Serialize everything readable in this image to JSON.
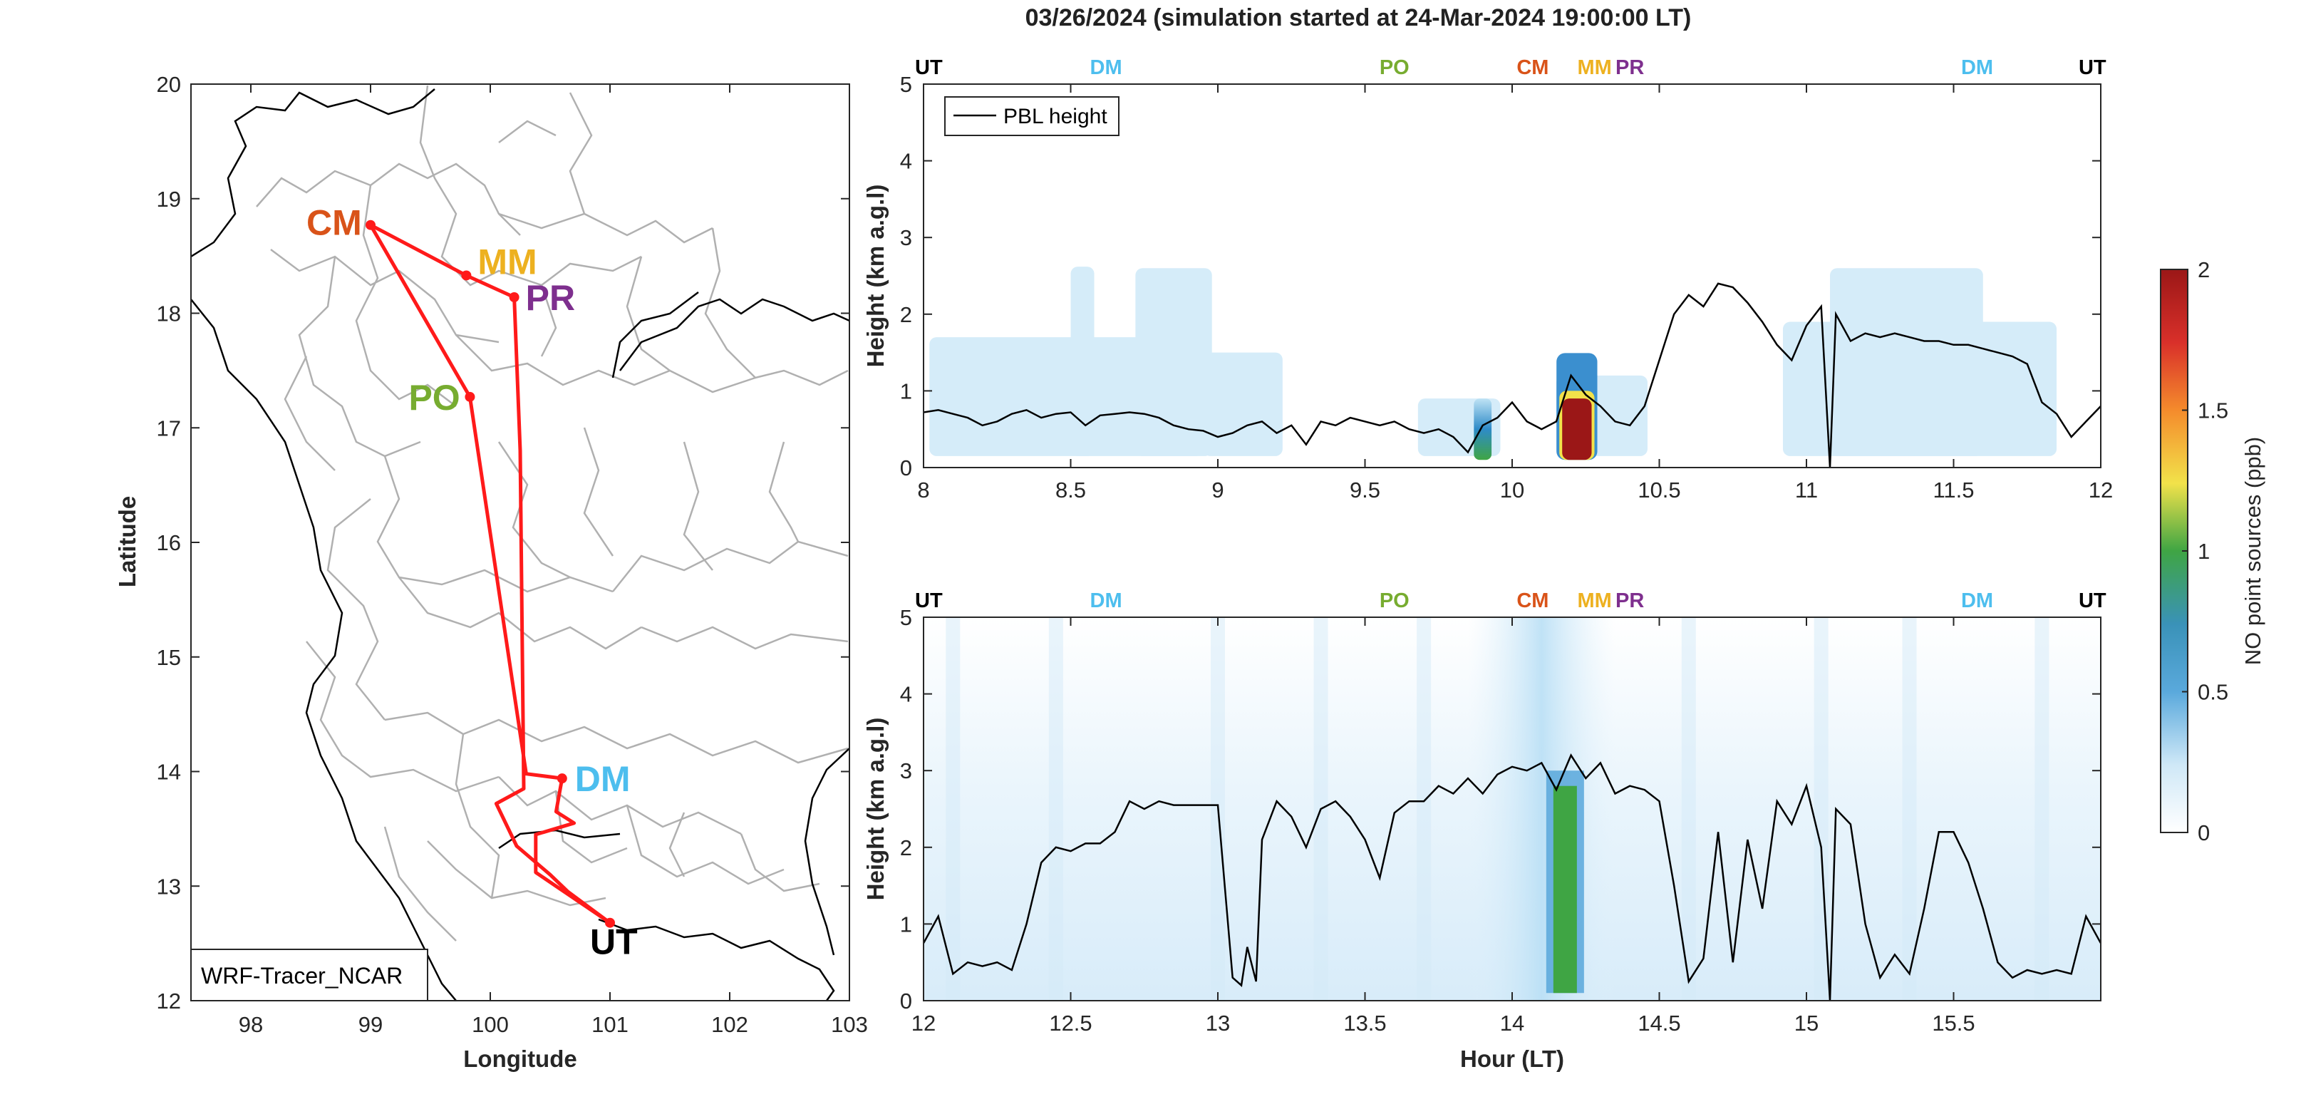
{
  "title": "03/26/2024 (simulation started at 24-Mar-2024 19:00:00 LT)",
  "colors": {
    "UT": "#000000",
    "DM": "#4DBEEE",
    "PO": "#77AC30",
    "CM": "#D95319",
    "MM": "#EDB120",
    "PR": "#7E2F8E",
    "route": "#FF1A1A",
    "pbl": "#000000",
    "border": "#b0b0b0"
  },
  "chart_data": [
    {
      "type": "map",
      "xlabel": "Longitude",
      "ylabel": "Latitude",
      "xlim": [
        97.5,
        103
      ],
      "ylim": [
        12,
        20
      ],
      "xticks": [
        98,
        99,
        100,
        101,
        102,
        103
      ],
      "yticks": [
        12,
        13,
        14,
        15,
        16,
        17,
        18,
        19,
        20
      ],
      "model_label": "WRF-Tracer_NCAR",
      "sites": [
        {
          "code": "CM",
          "lon": 99.0,
          "lat": 18.77
        },
        {
          "code": "MM",
          "lon": 99.8,
          "lat": 18.33
        },
        {
          "code": "PR",
          "lon": 100.2,
          "lat": 18.14
        },
        {
          "code": "PO",
          "lon": 99.83,
          "lat": 17.27
        },
        {
          "code": "DM",
          "lon": 100.6,
          "lat": 13.94
        },
        {
          "code": "UT",
          "lon": 101.0,
          "lat": 12.68
        }
      ],
      "flight_track": [
        [
          101.0,
          12.68
        ],
        [
          100.38,
          13.12
        ],
        [
          100.38,
          13.45
        ],
        [
          100.7,
          13.55
        ],
        [
          100.55,
          13.65
        ],
        [
          100.6,
          13.94
        ],
        [
          100.3,
          13.98
        ],
        [
          99.83,
          17.27
        ],
        [
          99.0,
          18.77
        ],
        [
          99.8,
          18.33
        ],
        [
          100.2,
          18.14
        ],
        [
          100.25,
          16.8
        ],
        [
          100.28,
          13.85
        ],
        [
          100.05,
          13.72
        ],
        [
          100.22,
          13.35
        ],
        [
          100.5,
          13.1
        ],
        [
          100.65,
          12.95
        ],
        [
          101.0,
          12.68
        ]
      ]
    },
    {
      "type": "heatmap",
      "ylabel": "Height (km a.g.l)",
      "xlim": [
        8,
        12
      ],
      "ylim": [
        0,
        5
      ],
      "xticks": [
        8,
        8.5,
        9,
        9.5,
        10,
        10.5,
        11,
        11.5,
        12
      ],
      "yticks": [
        0,
        1,
        2,
        3,
        4,
        5
      ],
      "legend": "PBL height",
      "site_labels": [
        {
          "code": "UT",
          "hour": 8.0
        },
        {
          "code": "DM",
          "hour": 8.62
        },
        {
          "code": "PO",
          "hour": 9.6
        },
        {
          "code": "CM",
          "hour": 10.07
        },
        {
          "code": "MM",
          "hour": 10.28
        },
        {
          "code": "PR",
          "hour": 10.4
        },
        {
          "code": "DM",
          "hour": 11.58
        },
        {
          "code": "UT",
          "hour": 11.97
        }
      ],
      "plume_blocks": [
        {
          "x0": 8.02,
          "x1": 8.95,
          "top": 1.7
        },
        {
          "x0": 8.95,
          "x1": 9.22,
          "top": 1.5
        },
        {
          "x0": 8.5,
          "x1": 8.58,
          "top": 2.62
        },
        {
          "x0": 8.72,
          "x1": 8.98,
          "top": 2.6
        },
        {
          "x0": 9.68,
          "x1": 9.96,
          "top": 0.9
        },
        {
          "x0": 10.15,
          "x1": 10.46,
          "top": 1.2
        },
        {
          "x0": 10.92,
          "x1": 11.85,
          "top": 1.9
        },
        {
          "x0": 11.08,
          "x1": 11.6,
          "top": 2.6
        }
      ],
      "plume_cores": [
        {
          "x": 9.9,
          "width": 0.06,
          "top": 0.9,
          "peak_ppb": 0.9
        },
        {
          "x": 10.22,
          "width": 0.1,
          "top": 1.4,
          "peak_ppb": 2.0
        }
      ],
      "pbl_hour": [
        8.0,
        8.05,
        8.1,
        8.15,
        8.2,
        8.25,
        8.3,
        8.35,
        8.4,
        8.45,
        8.5,
        8.55,
        8.6,
        8.65,
        8.7,
        8.75,
        8.8,
        8.85,
        8.9,
        8.95,
        9.0,
        9.05,
        9.1,
        9.15,
        9.2,
        9.25,
        9.3,
        9.35,
        9.4,
        9.45,
        9.5,
        9.55,
        9.6,
        9.65,
        9.7,
        9.75,
        9.8,
        9.85,
        9.9,
        9.95,
        10.0,
        10.05,
        10.1,
        10.15,
        10.2,
        10.25,
        10.3,
        10.35,
        10.4,
        10.45,
        10.5,
        10.55,
        10.6,
        10.65,
        10.7,
        10.75,
        10.8,
        10.85,
        10.9,
        10.95,
        11.0,
        11.05,
        11.08,
        11.1,
        11.15,
        11.2,
        11.25,
        11.3,
        11.35,
        11.4,
        11.45,
        11.5,
        11.55,
        11.6,
        11.65,
        11.7,
        11.75,
        11.8,
        11.85,
        11.9,
        11.95,
        12.0
      ],
      "pbl_km": [
        0.72,
        0.75,
        0.7,
        0.65,
        0.55,
        0.6,
        0.7,
        0.75,
        0.65,
        0.7,
        0.72,
        0.55,
        0.68,
        0.7,
        0.72,
        0.7,
        0.65,
        0.55,
        0.5,
        0.48,
        0.4,
        0.45,
        0.55,
        0.6,
        0.45,
        0.55,
        0.3,
        0.6,
        0.55,
        0.65,
        0.6,
        0.55,
        0.6,
        0.5,
        0.45,
        0.5,
        0.4,
        0.2,
        0.55,
        0.65,
        0.85,
        0.6,
        0.5,
        0.6,
        1.2,
        0.95,
        0.8,
        0.6,
        0.55,
        0.8,
        1.4,
        2.0,
        2.25,
        2.1,
        2.4,
        2.35,
        2.15,
        1.9,
        1.6,
        1.4,
        1.85,
        2.1,
        0.0,
        2.0,
        1.65,
        1.75,
        1.7,
        1.75,
        1.7,
        1.65,
        1.65,
        1.6,
        1.6,
        1.55,
        1.5,
        1.45,
        1.35,
        0.85,
        0.7,
        0.4,
        0.6,
        0.8
      ]
    },
    {
      "type": "heatmap",
      "xlabel": "Hour (LT)",
      "ylabel": "Height (km a.g.l)",
      "xlim": [
        12,
        16
      ],
      "ylim": [
        0,
        5
      ],
      "xticks": [
        12,
        12.5,
        13,
        13.5,
        14,
        14.5,
        15,
        15.5
      ],
      "yticks": [
        0,
        1,
        2,
        3,
        4,
        5
      ],
      "site_labels": [
        {
          "code": "UT",
          "hour": 12.0
        },
        {
          "code": "DM",
          "hour": 12.62
        },
        {
          "code": "PO",
          "hour": 13.6
        },
        {
          "code": "CM",
          "hour": 14.07
        },
        {
          "code": "MM",
          "hour": 14.28
        },
        {
          "code": "PR",
          "hour": 14.4
        },
        {
          "code": "DM",
          "hour": 15.58
        },
        {
          "code": "UT",
          "hour": 15.97
        }
      ],
      "plume_band": {
        "x0": 13.85,
        "x1": 14.35,
        "top": 3.0,
        "peak_ppb": 0.2
      },
      "plume_core": {
        "x": 14.18,
        "width": 0.08,
        "top": 2.9,
        "peak_ppb": 0.9
      },
      "pbl_hour": [
        12.0,
        12.05,
        12.1,
        12.15,
        12.2,
        12.25,
        12.3,
        12.35,
        12.4,
        12.45,
        12.5,
        12.55,
        12.6,
        12.65,
        12.7,
        12.75,
        12.8,
        12.85,
        12.9,
        12.95,
        13.0,
        13.05,
        13.08,
        13.1,
        13.13,
        13.15,
        13.2,
        13.25,
        13.3,
        13.35,
        13.4,
        13.45,
        13.5,
        13.55,
        13.6,
        13.65,
        13.7,
        13.75,
        13.8,
        13.85,
        13.9,
        13.95,
        14.0,
        14.05,
        14.1,
        14.15,
        14.2,
        14.25,
        14.3,
        14.35,
        14.4,
        14.45,
        14.5,
        14.55,
        14.6,
        14.65,
        14.7,
        14.75,
        14.8,
        14.85,
        14.9,
        14.95,
        15.0,
        15.05,
        15.08,
        15.1,
        15.15,
        15.2,
        15.25,
        15.3,
        15.35,
        15.4,
        15.45,
        15.5,
        15.55,
        15.6,
        15.65,
        15.7,
        15.75,
        15.8,
        15.85,
        15.9,
        15.95,
        16.0
      ],
      "pbl_km": [
        0.75,
        1.1,
        0.35,
        0.5,
        0.45,
        0.5,
        0.4,
        1.0,
        1.8,
        2.0,
        1.95,
        2.05,
        2.05,
        2.2,
        2.6,
        2.5,
        2.6,
        2.55,
        2.55,
        2.55,
        2.55,
        0.3,
        0.2,
        0.7,
        0.25,
        2.1,
        2.6,
        2.4,
        2.0,
        2.5,
        2.6,
        2.4,
        2.1,
        1.6,
        2.45,
        2.6,
        2.6,
        2.8,
        2.7,
        2.9,
        2.7,
        2.95,
        3.05,
        3.0,
        3.1,
        2.75,
        3.2,
        2.9,
        3.1,
        2.7,
        2.8,
        2.75,
        2.6,
        1.5,
        0.25,
        0.55,
        2.2,
        0.5,
        2.1,
        1.2,
        2.6,
        2.3,
        2.8,
        2.0,
        0.0,
        2.5,
        2.3,
        1.0,
        0.3,
        0.6,
        0.35,
        1.2,
        2.2,
        2.2,
        1.8,
        1.2,
        0.5,
        0.3,
        0.4,
        0.35,
        0.4,
        0.35,
        1.1,
        0.75
      ]
    },
    {
      "type": "colorbar",
      "label": "NO point sources (ppb)",
      "lim": [
        0,
        2
      ],
      "ticks": [
        0,
        0.5,
        1,
        1.5,
        2
      ],
      "tick_labels": [
        "0",
        "0.5",
        "1",
        "1.5",
        "2"
      ]
    }
  ]
}
